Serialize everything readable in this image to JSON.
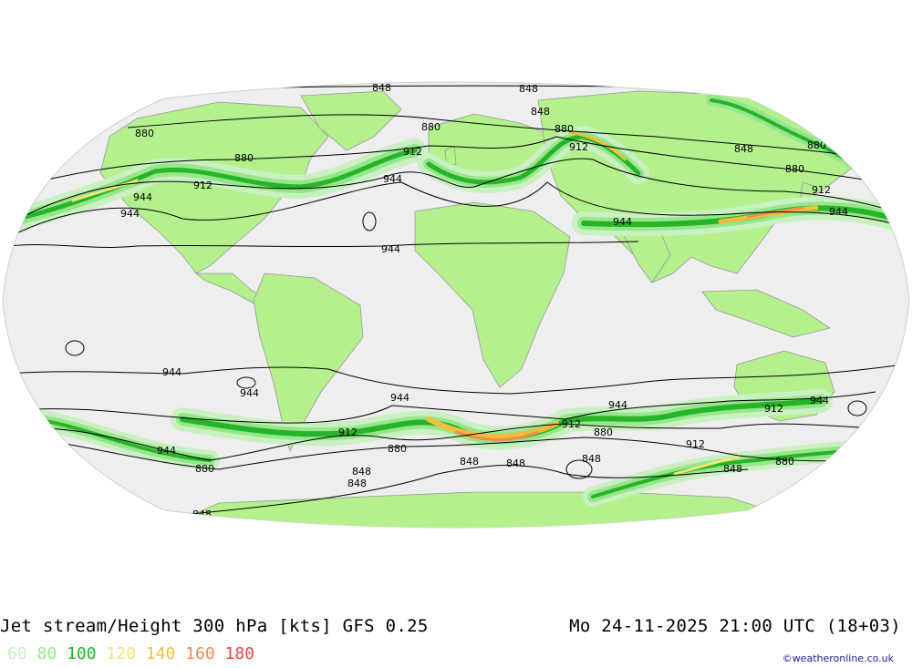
{
  "map": {
    "title": "Jet stream/Height 300 hPa [kts] GFS 0.25",
    "valid_time": "Mo 24-11-2025 21:00 UTC (18+03)",
    "credit": "©weatheronline.co.uk",
    "legend": [
      {
        "value": "60",
        "color": "#c8f0c0"
      },
      {
        "value": "80",
        "color": "#96e68c"
      },
      {
        "value": "100",
        "color": "#28b428"
      },
      {
        "value": "120",
        "color": "#f0e678"
      },
      {
        "value": "140",
        "color": "#f0be3c"
      },
      {
        "value": "160",
        "color": "#f08c50"
      },
      {
        "value": "180",
        "color": "#e64646"
      }
    ],
    "colors": {
      "ocean": "#eeeeee",
      "land": "#b4f08c",
      "border": "#a0a0a0",
      "contour": "#000000"
    },
    "contour_labels": [
      "848",
      "848",
      "848",
      "880",
      "880",
      "880",
      "880",
      "912",
      "912",
      "912",
      "912",
      "944",
      "944",
      "944",
      "944",
      "944",
      "944",
      "880",
      "880",
      "944",
      "944",
      "944",
      "912",
      "944",
      "944",
      "944",
      "912",
      "912",
      "912",
      "880",
      "880",
      "880",
      "880",
      "848",
      "848",
      "848",
      "848",
      "848",
      "848",
      "848",
      "848"
    ]
  }
}
